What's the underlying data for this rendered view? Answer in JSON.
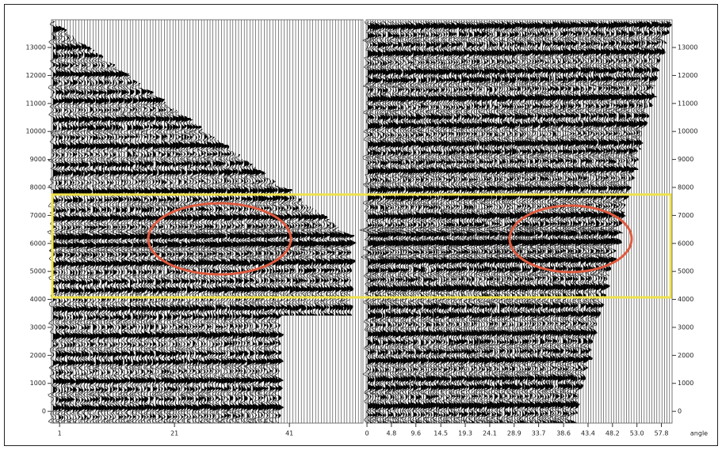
{
  "chart_data": [
    {
      "type": "wiggle",
      "xlim": [
        -0.4,
        53.8
      ],
      "xticks": [
        1,
        21,
        41
      ],
      "ylim": [
        -420,
        13990
      ],
      "yticks": [
        0,
        1000,
        2000,
        3000,
        4000,
        5000,
        6000,
        7000,
        8000,
        9000,
        10000,
        11000,
        12000,
        13000
      ]
    },
    {
      "type": "wiggle",
      "xlabel": "angle",
      "xlim": [
        -0.16,
        59.9
      ],
      "xticks": [
        0,
        4.8,
        9.6,
        14.5,
        19.3,
        24.1,
        28.9,
        33.7,
        38.6,
        43.4,
        48.2,
        {
          "value": 53,
          "label": "53.0"
        },
        57.8
      ],
      "ylim": [
        -420,
        13990
      ],
      "yticks": [
        0,
        1000,
        2000,
        3000,
        4000,
        5000,
        6000,
        7000,
        8000,
        9000,
        10000,
        11000,
        12000,
        13000
      ]
    }
  ]
}
